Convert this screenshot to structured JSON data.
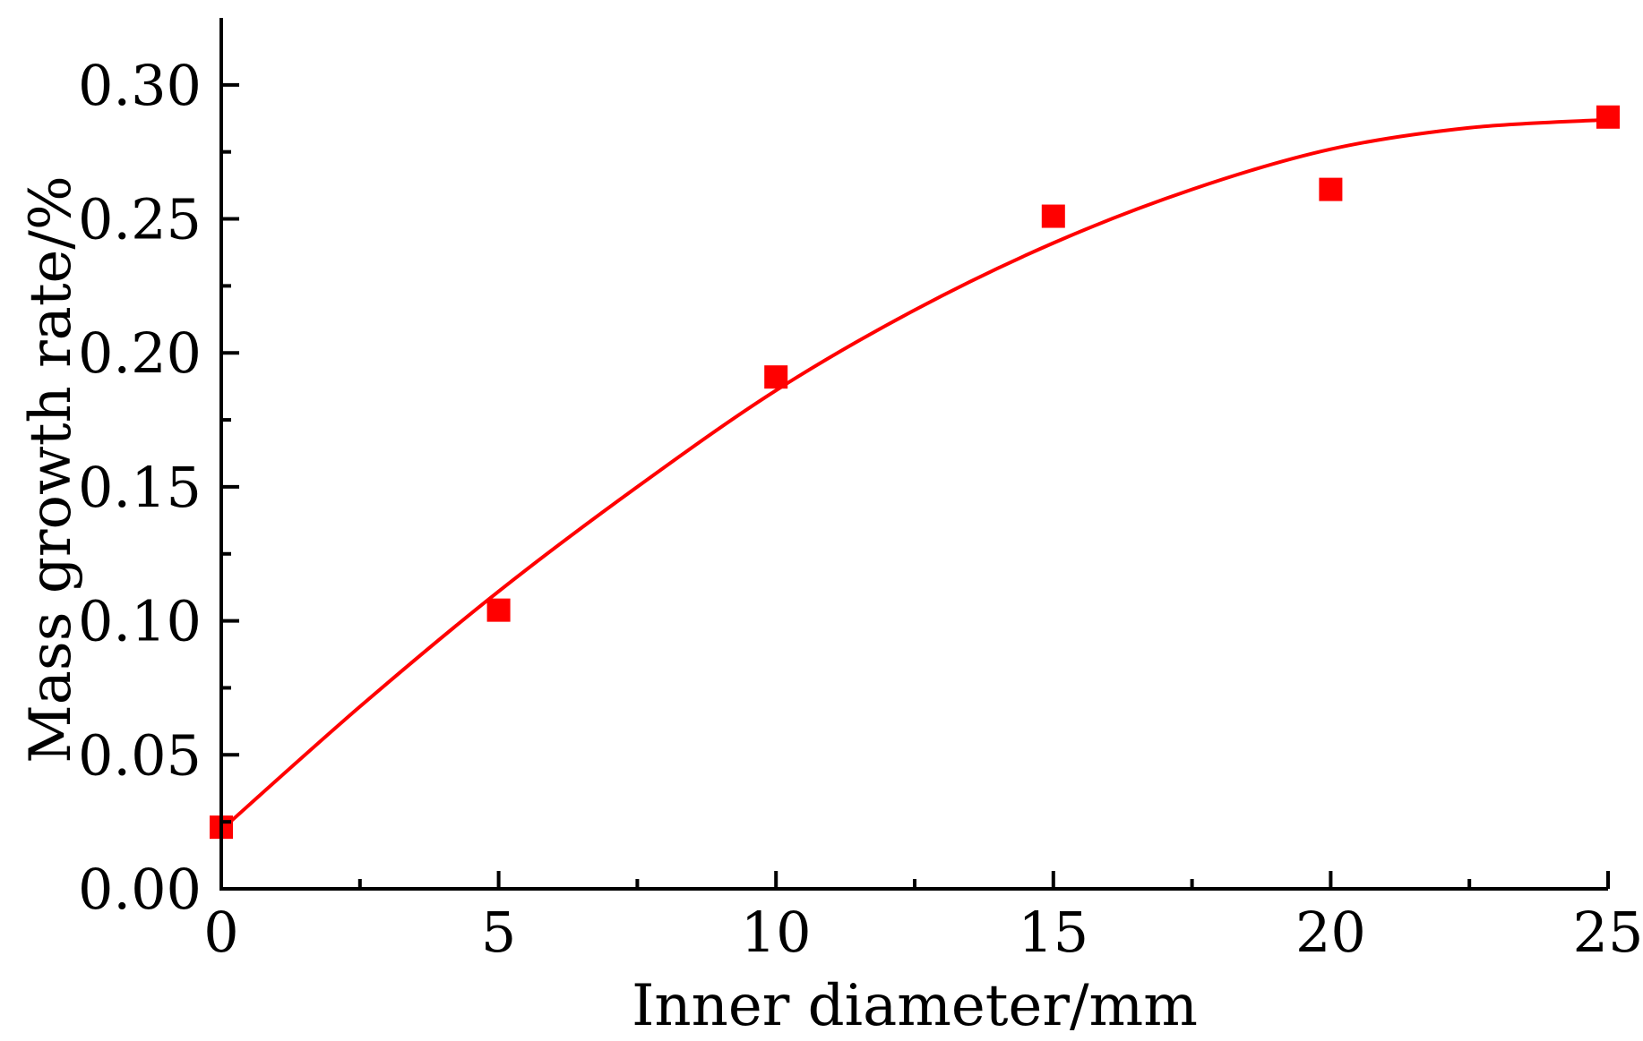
{
  "chart_data": {
    "type": "scatter",
    "title": "",
    "xlabel": "Inner diameter/mm",
    "ylabel": "Mass growth rate/%",
    "xlim": [
      0,
      25
    ],
    "ylim": [
      0,
      0.325
    ],
    "x_ticks": [
      0,
      5,
      10,
      15,
      20,
      25
    ],
    "x_tick_labels": [
      "0",
      "5",
      "10",
      "15",
      "20",
      "25"
    ],
    "x_minor_ticks": [
      2.5,
      7.5,
      12.5,
      17.5,
      22.5
    ],
    "y_ticks": [
      0,
      0.05,
      0.1,
      0.15,
      0.2,
      0.25,
      0.3
    ],
    "y_tick_labels": [
      "0.00",
      "0.05",
      "0.10",
      "0.15",
      "0.20",
      "0.25",
      "0.30"
    ],
    "y_minor_ticks": [
      0.025,
      0.075,
      0.125,
      0.175,
      0.225,
      0.275
    ],
    "grid": false,
    "legend": "none",
    "series": [
      {
        "kind": "points",
        "marker": "square",
        "color": "#ff0000",
        "x": [
          0,
          5,
          10,
          15,
          20,
          25
        ],
        "y": [
          0.023,
          0.104,
          0.191,
          0.251,
          0.261,
          0.288
        ]
      },
      {
        "kind": "fit-line",
        "color": "#ff0000",
        "x": [
          0,
          2.5,
          5,
          7.5,
          10,
          12.5,
          15,
          17.5,
          20,
          22.5,
          25
        ],
        "y": [
          0.022,
          0.068,
          0.111,
          0.15,
          0.186,
          0.216,
          0.241,
          0.261,
          0.276,
          0.284,
          0.287
        ]
      }
    ]
  }
}
